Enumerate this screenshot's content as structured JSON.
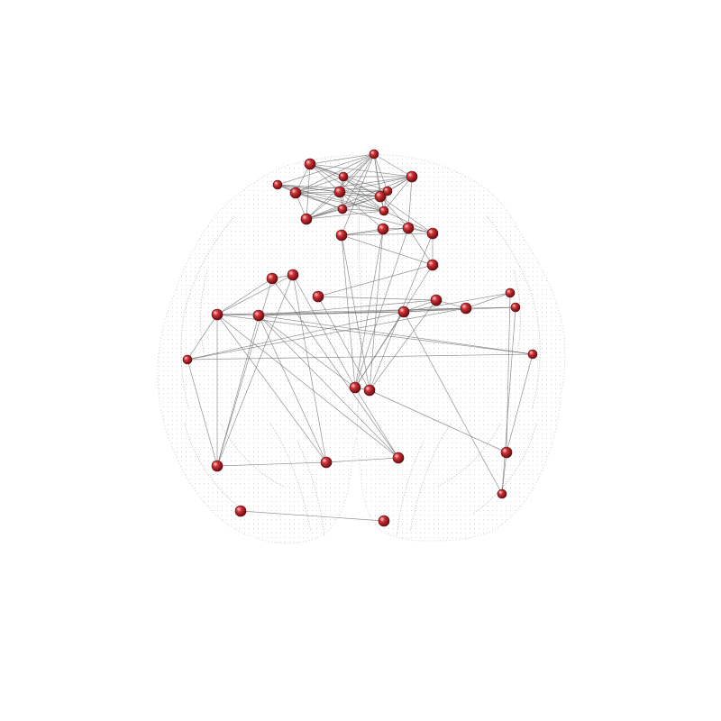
{
  "figure": {
    "type": "brain-connectivity-graph",
    "view": "coronal",
    "background": "#ffffff",
    "brain_outline_color": "#c9c9c9",
    "node_color": "#b3232a",
    "edge_color": "#6f6f6f",
    "node_count": 43
  }
}
